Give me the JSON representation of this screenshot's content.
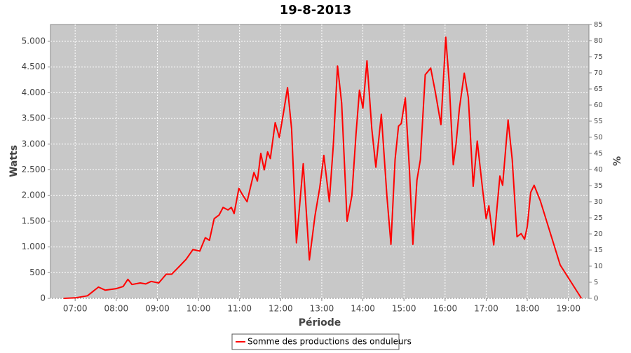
{
  "chart_data": {
    "type": "line",
    "title": "19-8-2013",
    "x_label": "Période",
    "y_label": "Watts",
    "y2_label": "%",
    "x": [
      "06:43",
      "07:00",
      "07:18",
      "07:34",
      "07:44",
      "08:00",
      "08:10",
      "08:17",
      "08:23",
      "08:35",
      "08:43",
      "08:51",
      "09:02",
      "09:13",
      "09:21",
      "09:32",
      "09:42",
      "09:52",
      "10:02",
      "10:10",
      "10:16",
      "10:23",
      "10:30",
      "10:36",
      "10:43",
      "10:48",
      "10:52",
      "10:59",
      "11:05",
      "11:11",
      "11:21",
      "11:26",
      "11:31",
      "11:36",
      "11:41",
      "11:45",
      "11:52",
      "11:58",
      "12:04",
      "12:10",
      "12:16",
      "12:23",
      "12:33",
      "12:42",
      "12:50",
      "12:57",
      "13:03",
      "13:11",
      "13:17",
      "13:23",
      "13:29",
      "13:37",
      "13:44",
      "13:50",
      "13:55",
      "14:00",
      "14:06",
      "14:13",
      "14:19",
      "14:27",
      "14:35",
      "14:41",
      "14:47",
      "14:52",
      "14:56",
      "15:02",
      "15:08",
      "15:13",
      "15:19",
      "15:24",
      "15:31",
      "15:39",
      "15:46",
      "15:54",
      "16:01",
      "16:06",
      "16:12",
      "16:16",
      "16:21",
      "16:28",
      "16:34",
      "16:41",
      "16:47",
      "16:55",
      "17:00",
      "17:04",
      "17:11",
      "17:16",
      "17:20",
      "17:24",
      "17:32",
      "17:38",
      "17:45",
      "17:51",
      "17:56",
      "18:00",
      "18:05",
      "18:10",
      "18:19",
      "18:48",
      "19:19"
    ],
    "series": [
      {
        "name": "Somme des productions des onduleurs",
        "color": "#ff0000",
        "values": [
          0,
          10,
          50,
          220,
          160,
          190,
          230,
          370,
          270,
          300,
          280,
          330,
          300,
          470,
          470,
          620,
          760,
          950,
          920,
          1180,
          1130,
          1550,
          1620,
          1770,
          1720,
          1770,
          1650,
          2140,
          2000,
          1880,
          2450,
          2280,
          2820,
          2500,
          2850,
          2720,
          3420,
          3130,
          3600,
          4100,
          3300,
          1080,
          2620,
          750,
          1600,
          2150,
          2780,
          1880,
          3000,
          4520,
          3800,
          1500,
          2000,
          3200,
          4050,
          3700,
          4620,
          3300,
          2550,
          3580,
          2000,
          1050,
          2700,
          3350,
          3400,
          3900,
          2500,
          1050,
          2300,
          2700,
          4350,
          4480,
          4000,
          3380,
          5080,
          4200,
          2600,
          3000,
          3700,
          4380,
          3900,
          2180,
          3060,
          2100,
          1550,
          1800,
          1040,
          1800,
          2380,
          2200,
          3470,
          2700,
          1200,
          1260,
          1150,
          1400,
          2060,
          2200,
          1900,
          650,
          0
        ]
      }
    ],
    "xlim": [
      "06:24",
      "19:30"
    ],
    "xticks": [
      "07:00",
      "08:00",
      "09:00",
      "10:00",
      "11:00",
      "12:00",
      "13:00",
      "14:00",
      "15:00",
      "16:00",
      "17:00",
      "18:00",
      "19:00"
    ],
    "ylim": [
      0,
      5327
    ],
    "yticks": [
      0,
      500,
      {
        "value": 1000,
        "label": "1.000"
      },
      {
        "value": 1500,
        "label": "1.500"
      },
      {
        "value": 2000,
        "label": "2.000"
      },
      {
        "value": 2500,
        "label": "2.500"
      },
      {
        "value": 3000,
        "label": "3.000"
      },
      {
        "value": 3500,
        "label": "3.500"
      },
      {
        "value": 4000,
        "label": "4.000"
      },
      {
        "value": 4500,
        "label": "4.500"
      },
      {
        "value": 5000,
        "label": "5.000"
      }
    ],
    "y2lim": [
      0,
      85
    ],
    "y2ticks": [
      0,
      5,
      10,
      15,
      20,
      25,
      30,
      35,
      40,
      45,
      50,
      55,
      60,
      65,
      70,
      75,
      80,
      85
    ],
    "grid": true
  }
}
